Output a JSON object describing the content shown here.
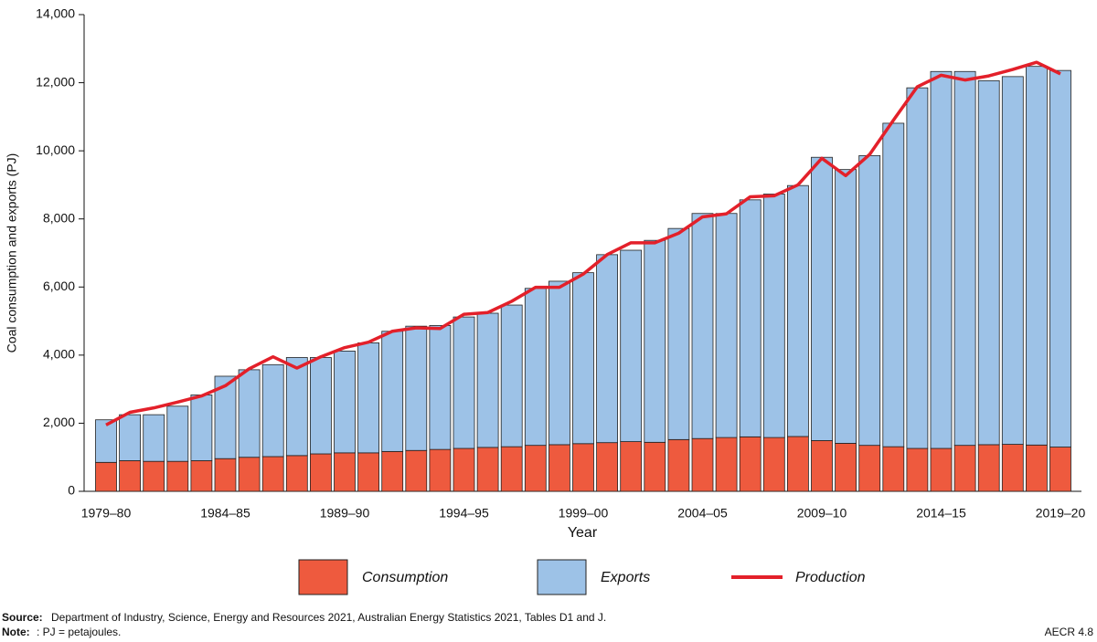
{
  "chart_data": {
    "type": "bar",
    "stacked": true,
    "y_label": "Coal consumption and exports (PJ)",
    "x_label": "Year",
    "categories": [
      "1979–80",
      null,
      null,
      null,
      null,
      "1984–85",
      null,
      null,
      null,
      null,
      "1989–90",
      null,
      null,
      null,
      null,
      "1994–95",
      null,
      null,
      null,
      null,
      "1999–00",
      null,
      null,
      null,
      null,
      "2004–05",
      null,
      null,
      null,
      null,
      "2009–10",
      null,
      null,
      null,
      null,
      "2014–15",
      null,
      null,
      null,
      null,
      "2019–20"
    ],
    "series": [
      {
        "name": "Consumption",
        "type": "bar",
        "color": "#ee5a3e",
        "values": [
          850,
          900,
          880,
          880,
          900,
          960,
          1000,
          1020,
          1050,
          1100,
          1130,
          1130,
          1170,
          1200,
          1230,
          1260,
          1290,
          1310,
          1350,
          1370,
          1400,
          1430,
          1460,
          1440,
          1520,
          1550,
          1580,
          1600,
          1580,
          1610,
          1490,
          1410,
          1350,
          1310,
          1260,
          1260,
          1350,
          1370,
          1380,
          1360,
          1300
        ]
      },
      {
        "name": "Exports",
        "type": "bar",
        "color": "#9dc2e7",
        "values": [
          1250,
          1350,
          1370,
          1620,
          1930,
          2420,
          2570,
          2700,
          2880,
          2830,
          2990,
          3230,
          3530,
          3650,
          3640,
          3860,
          3940,
          4160,
          4610,
          4800,
          5020,
          5520,
          5620,
          5930,
          6200,
          6610,
          6580,
          6960,
          7150,
          7370,
          8320,
          8040,
          8510,
          9500,
          10590,
          11070,
          10980,
          10690,
          10800,
          11120,
          11060
        ]
      },
      {
        "name": "Production",
        "type": "line",
        "color": "#e3202a",
        "values": [
          1950,
          2320,
          2450,
          2620,
          2800,
          3100,
          3600,
          3950,
          3620,
          3950,
          4220,
          4380,
          4700,
          4800,
          4780,
          5200,
          5250,
          5580,
          5990,
          5990,
          6380,
          6950,
          7300,
          7300,
          7580,
          8060,
          8150,
          8650,
          8680,
          9000,
          9780,
          9270,
          9890,
          10900,
          11880,
          12220,
          12080,
          12200,
          12390,
          12600,
          12260
        ]
      }
    ],
    "ylim": [
      0,
      14000
    ],
    "yticks": [
      0,
      {
        "value": 2000,
        "label": "2,000"
      },
      {
        "value": 4000,
        "label": "4,000"
      },
      {
        "value": 6000,
        "label": "6,000"
      },
      {
        "value": 8000,
        "label": "8,000"
      },
      {
        "value": 10000,
        "label": "10,000"
      },
      {
        "value": 12000,
        "label": "12,000"
      },
      {
        "value": 14000,
        "label": "14,000"
      }
    ],
    "grid": false,
    "source_label": "Source:",
    "source": "Department of Industry, Science, Energy and Resources 2021, Australian Energy Statistics 2021, Tables D1 and J.",
    "note_label": "Note:",
    "note": ": PJ = petajoules.",
    "figure_id": "AECR 4.8"
  }
}
